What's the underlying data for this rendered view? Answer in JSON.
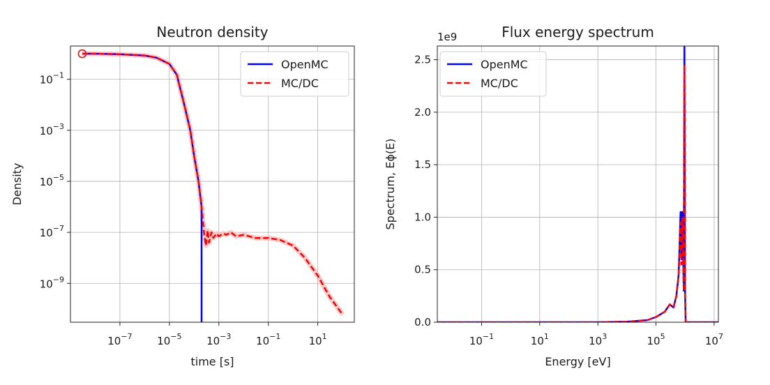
{
  "chart_data": [
    {
      "type": "line",
      "title": "Neutron density",
      "xlabel": "time [s]",
      "ylabel": "Density",
      "xscale": "log",
      "yscale": "log",
      "xlim": [
        1e-09,
        300
      ],
      "ylim": [
        3e-11,
        2
      ],
      "grid": true,
      "legend_position": "top-right",
      "x_ticks": [
        {
          "base": "10",
          "exp": "−7",
          "value": 1e-07
        },
        {
          "base": "10",
          "exp": "−5",
          "value": 1e-05
        },
        {
          "base": "10",
          "exp": "−3",
          "value": 0.001
        },
        {
          "base": "10",
          "exp": "−1",
          "value": 0.1
        },
        {
          "base": "10",
          "exp": "1",
          "value": 10
        }
      ],
      "y_ticks": [
        {
          "base": "10",
          "exp": "−1",
          "value": 0.1
        },
        {
          "base": "10",
          "exp": "−3",
          "value": 0.001
        },
        {
          "base": "10",
          "exp": "−5",
          "value": 1e-05
        },
        {
          "base": "10",
          "exp": "−7",
          "value": 1e-07
        },
        {
          "base": "10",
          "exp": "−9",
          "value": 1e-09
        }
      ],
      "series": [
        {
          "name": "OpenMC",
          "color": "#0000ff",
          "style": "solid",
          "x": [
            3e-09,
            1e-08,
            1e-07,
            1e-06,
            3e-06,
            1e-05,
            2e-05,
            4e-05,
            7e-05,
            0.0001,
            0.00015,
            0.0002,
            0.0002
          ],
          "y": [
            1.0,
            1.0,
            0.95,
            0.85,
            0.7,
            0.4,
            0.15,
            0.01,
            0.001,
            0.0001,
            1e-05,
            1e-06,
            3e-11
          ]
        },
        {
          "name": "MC/DC",
          "color": "#ff0000",
          "style": "dashed",
          "x": [
            3e-09,
            1e-08,
            1e-07,
            1e-06,
            3e-06,
            1e-05,
            2e-05,
            4e-05,
            7e-05,
            0.0001,
            0.00015,
            0.0002,
            0.00025,
            0.0003,
            0.00035,
            0.0004,
            0.0005,
            0.0006,
            0.0008,
            0.001,
            0.0015,
            0.002,
            0.003,
            0.005,
            0.01,
            0.03,
            0.1,
            0.3,
            1,
            3,
            10,
            30,
            100
          ],
          "y": [
            1.0,
            1.0,
            0.95,
            0.85,
            0.7,
            0.4,
            0.15,
            0.01,
            0.001,
            0.0001,
            1e-05,
            1e-06,
            1e-07,
            3e-08,
            1.2e-07,
            4e-08,
            1e-07,
            6e-08,
            9e-08,
            7e-08,
            9e-08,
            8e-08,
            1e-07,
            7e-08,
            8e-08,
            6e-08,
            6e-08,
            5e-08,
            3e-08,
            1e-08,
            2e-09,
            3e-10,
            6e-11
          ]
        }
      ],
      "markers": [
        {
          "x": 3e-09,
          "y": 1.0,
          "shape": "circle",
          "color": "#d62728"
        }
      ]
    },
    {
      "type": "line",
      "title": "Flux energy spectrum",
      "xlabel": "Energy [eV]",
      "ylabel": "Spectrum, Eϕ(E)",
      "y_offset_label": "1e9",
      "xscale": "log",
      "yscale": "linear",
      "xlim": [
        0.003,
        14000000
      ],
      "ylim": [
        0,
        2.63
      ],
      "grid": true,
      "legend_position": "top-left",
      "x_ticks": [
        {
          "base": "10",
          "exp": "−1",
          "value": 0.1
        },
        {
          "base": "10",
          "exp": "1",
          "value": 10
        },
        {
          "base": "10",
          "exp": "3",
          "value": 1000
        },
        {
          "base": "10",
          "exp": "5",
          "value": 100000
        },
        {
          "base": "10",
          "exp": "7",
          "value": 10000000
        }
      ],
      "y_ticks": [
        {
          "label": "0.0",
          "value": 0.0
        },
        {
          "label": "0.5",
          "value": 0.5
        },
        {
          "label": "1.0",
          "value": 1.0
        },
        {
          "label": "1.5",
          "value": 1.5
        },
        {
          "label": "2.0",
          "value": 2.0
        },
        {
          "label": "2.5",
          "value": 2.5
        }
      ],
      "series": [
        {
          "name": "OpenMC",
          "color": "#0000ff",
          "style": "solid",
          "x": [
            0.003,
            1000,
            10000,
            50000,
            100000,
            200000,
            300000,
            400000,
            500000,
            600000,
            700000,
            750000,
            800000,
            850000,
            900000,
            950000,
            1000000,
            1050000,
            1100000,
            14000000
          ],
          "y": [
            0.0,
            0.0,
            0.005,
            0.02,
            0.05,
            0.1,
            0.17,
            0.14,
            0.25,
            0.45,
            1.05,
            0.6,
            1.05,
            0.7,
            0.3,
            2.63,
            0.3,
            0.0,
            0.0,
            0.0
          ]
        },
        {
          "name": "MC/DC",
          "color": "#ff0000",
          "style": "dashed",
          "x": [
            0.003,
            1000,
            10000,
            50000,
            100000,
            200000,
            300000,
            400000,
            500000,
            600000,
            700000,
            750000,
            800000,
            850000,
            900000,
            950000,
            1000000,
            1050000,
            1100000,
            14000000
          ],
          "y": [
            0.0,
            0.0,
            0.005,
            0.02,
            0.05,
            0.1,
            0.17,
            0.14,
            0.25,
            0.45,
            0.95,
            0.55,
            1.0,
            0.65,
            0.3,
            2.45,
            0.3,
            0.0,
            0.0,
            0.0
          ]
        }
      ]
    }
  ]
}
